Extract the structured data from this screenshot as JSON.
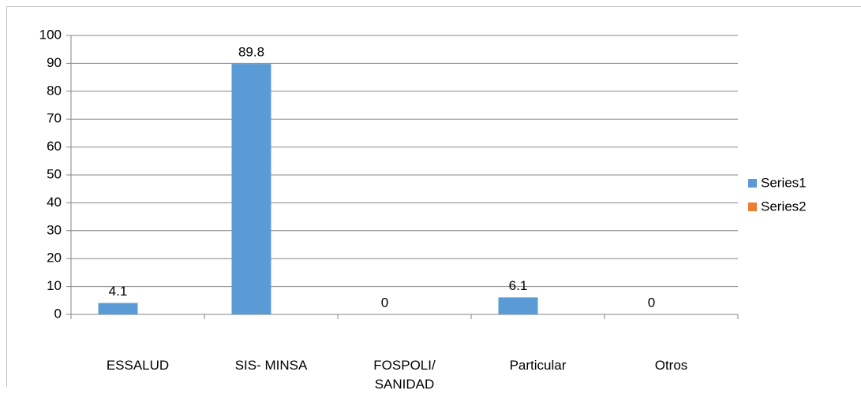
{
  "chart_data": {
    "type": "bar",
    "categories": [
      "ESSALUD",
      "SIS- MINSA",
      "FOSPOLI/ SANIDAD",
      "Particular",
      "Otros"
    ],
    "series": [
      {
        "name": "Series1",
        "color": "#5b9bd5",
        "values": [
          4.1,
          89.8,
          0,
          6.1,
          0
        ]
      },
      {
        "name": "Series2",
        "color": "#ed7d31",
        "values": [
          null,
          null,
          null,
          null,
          null
        ]
      }
    ],
    "ylim": [
      0,
      100
    ],
    "yticks": [
      0,
      10,
      20,
      30,
      40,
      50,
      60,
      70,
      80,
      90,
      100
    ],
    "grid": true,
    "legend": "right",
    "data_labels": true
  }
}
